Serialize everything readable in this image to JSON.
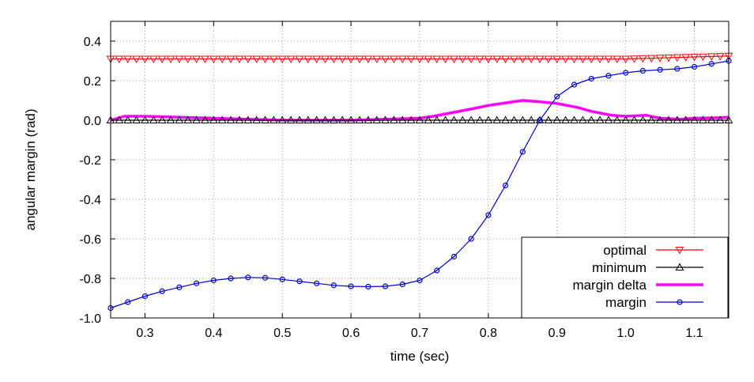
{
  "chart_data": {
    "type": "line",
    "title": "",
    "xlabel": "time (sec)",
    "ylabel": "angular margin (rad)",
    "xlim": [
      0.25,
      1.15
    ],
    "ylim": [
      -1.0,
      0.5
    ],
    "xticks": [
      0.3,
      0.4,
      0.5,
      0.6,
      0.7,
      0.8,
      0.9,
      1.0,
      1.1
    ],
    "xtick_labels": [
      "0.3",
      "0.4",
      "0.5",
      "0.6",
      "0.7",
      "0.8",
      "0.9",
      "1.0",
      "1.1"
    ],
    "yticks": [
      -1.0,
      -0.8,
      -0.6,
      -0.4,
      -0.2,
      0.0,
      0.2,
      0.4
    ],
    "ytick_labels": [
      "-1.0",
      "-0.8",
      "-0.6",
      "-0.4",
      "-0.2",
      "0.0",
      "0.2",
      "0.4"
    ],
    "grid": true,
    "legend_position": "bottom-right",
    "series": [
      {
        "name": "optimal",
        "color": "#ff0000",
        "marker": "triangle-down",
        "x": [
          0.25,
          1.0,
          1.05,
          1.1,
          1.15
        ],
        "y": [
          0.31,
          0.31,
          0.315,
          0.32,
          0.325
        ]
      },
      {
        "name": "minimum",
        "color": "#000000",
        "marker": "triangle-up",
        "x": [
          0.25,
          1.15
        ],
        "y": [
          0.0,
          0.0
        ]
      },
      {
        "name": "margin delta",
        "color": "#ff00ff",
        "marker": "none",
        "x": [
          0.25,
          0.27,
          0.3,
          0.35,
          0.4,
          0.45,
          0.5,
          0.55,
          0.6,
          0.65,
          0.7,
          0.72,
          0.75,
          0.78,
          0.8,
          0.83,
          0.85,
          0.87,
          0.9,
          0.93,
          0.95,
          0.98,
          1.0,
          1.03,
          1.05,
          1.08,
          1.1,
          1.13,
          1.15
        ],
        "y": [
          0.0,
          0.02,
          0.02,
          0.015,
          0.01,
          0.005,
          0.0,
          0.0,
          0.0,
          0.005,
          0.01,
          0.02,
          0.04,
          0.06,
          0.075,
          0.09,
          0.1,
          0.095,
          0.085,
          0.065,
          0.045,
          0.025,
          0.02,
          0.025,
          0.01,
          0.005,
          0.01,
          0.012,
          0.015
        ]
      },
      {
        "name": "margin",
        "color": "#0000cc",
        "marker": "circle",
        "x": [
          0.25,
          0.275,
          0.3,
          0.325,
          0.35,
          0.375,
          0.4,
          0.425,
          0.45,
          0.475,
          0.5,
          0.525,
          0.55,
          0.575,
          0.6,
          0.625,
          0.65,
          0.675,
          0.7,
          0.725,
          0.75,
          0.775,
          0.8,
          0.825,
          0.85,
          0.875,
          0.9,
          0.925,
          0.95,
          0.975,
          1.0,
          1.025,
          1.05,
          1.075,
          1.1,
          1.125,
          1.15
        ],
        "y": [
          -0.95,
          -0.92,
          -0.89,
          -0.865,
          -0.845,
          -0.825,
          -0.81,
          -0.8,
          -0.795,
          -0.797,
          -0.805,
          -0.815,
          -0.825,
          -0.835,
          -0.84,
          -0.842,
          -0.84,
          -0.83,
          -0.81,
          -0.76,
          -0.69,
          -0.6,
          -0.48,
          -0.33,
          -0.16,
          0.0,
          0.12,
          0.18,
          0.21,
          0.225,
          0.24,
          0.25,
          0.255,
          0.26,
          0.27,
          0.285,
          0.3
        ]
      }
    ]
  }
}
